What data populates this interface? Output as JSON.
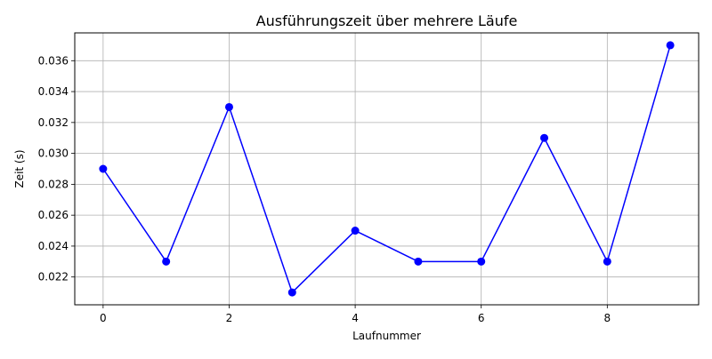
{
  "chart_data": {
    "type": "line",
    "title": "Ausführungszeit über mehrere Läufe",
    "xlabel": "Laufnummer",
    "ylabel": "Zeit (s)",
    "x": [
      0,
      1,
      2,
      3,
      4,
      5,
      6,
      7,
      8,
      9
    ],
    "series": [
      {
        "values": [
          0.029,
          0.023,
          0.033,
          0.021,
          0.025,
          0.023,
          0.023,
          0.031,
          0.023,
          0.037
        ],
        "color": "#0000ff",
        "marker": "circle"
      }
    ],
    "xlim": [
      -0.45,
      9.45
    ],
    "ylim": [
      0.0202,
      0.0378
    ],
    "x_ticks": [
      0,
      2,
      4,
      6,
      8
    ],
    "x_tick_labels": [
      "0",
      "2",
      "4",
      "6",
      "8"
    ],
    "y_ticks": [
      0.022,
      0.024,
      0.026,
      0.028,
      0.03,
      0.032,
      0.034,
      0.036
    ],
    "y_tick_labels": [
      "0.022",
      "0.024",
      "0.026",
      "0.028",
      "0.030",
      "0.032",
      "0.034",
      "0.036"
    ],
    "grid": true,
    "grid_color": "#b0b0b0",
    "legend": "none"
  }
}
